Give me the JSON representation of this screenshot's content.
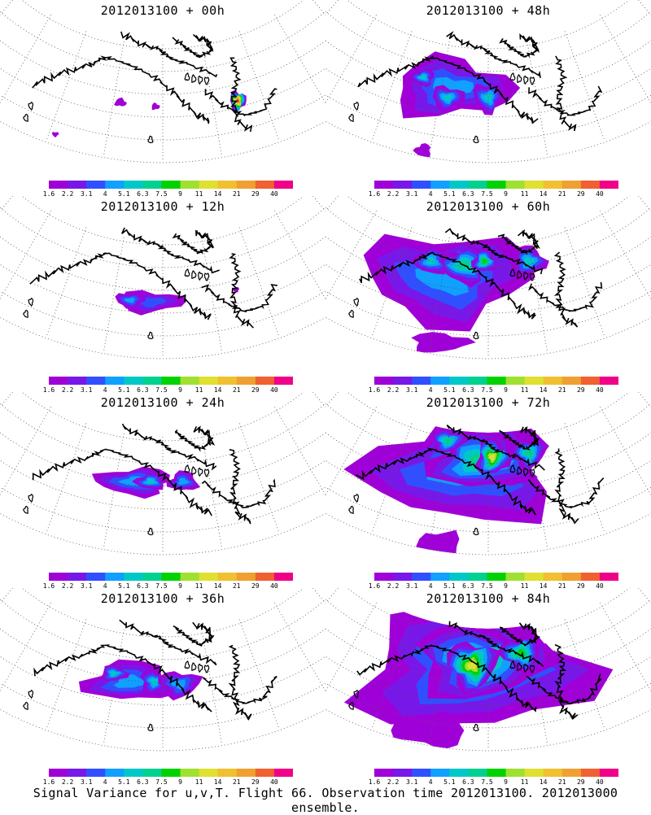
{
  "caption": "Signal Variance for u,v,T. Flight 66. Observation time 2012013100. 2012013000 ensemble.",
  "colorbar": {
    "labels": [
      "1.6",
      "2.2",
      "3.1",
      "4",
      "5.1",
      "6.3",
      "7.5",
      "9",
      "11",
      "14",
      "21",
      "29",
      "40"
    ],
    "colors": [
      "#a000d8",
      "#7818e8",
      "#3050ff",
      "#10a0ff",
      "#00c8c8",
      "#00d090",
      "#00d200",
      "#a0e030",
      "#e0e030",
      "#f0c030",
      "#f0a030",
      "#f06030",
      "#f00088"
    ]
  },
  "panels": [
    {
      "title": "2012013100 + 00h",
      "level": 0
    },
    {
      "title": "2012013100 + 48h",
      "level": 4
    },
    {
      "title": "2012013100 + 12h",
      "level": 1
    },
    {
      "title": "2012013100 + 60h",
      "level": 5
    },
    {
      "title": "2012013100 + 24h",
      "level": 2
    },
    {
      "title": "2012013100 + 72h",
      "level": 6
    },
    {
      "title": "2012013100 + 36h",
      "level": 3
    },
    {
      "title": "2012013100 + 84h",
      "level": 7
    }
  ],
  "chart_data": {
    "type": "heatmap",
    "variable": "Signal Variance for u,v,T",
    "colorbar_levels": [
      1.6,
      2.2,
      3.1,
      4,
      5.1,
      6.3,
      7.5,
      9,
      11,
      14,
      21,
      29,
      40
    ],
    "forecast_hours": [
      "00h",
      "12h",
      "24h",
      "36h",
      "48h",
      "60h",
      "72h",
      "84h"
    ]
  }
}
